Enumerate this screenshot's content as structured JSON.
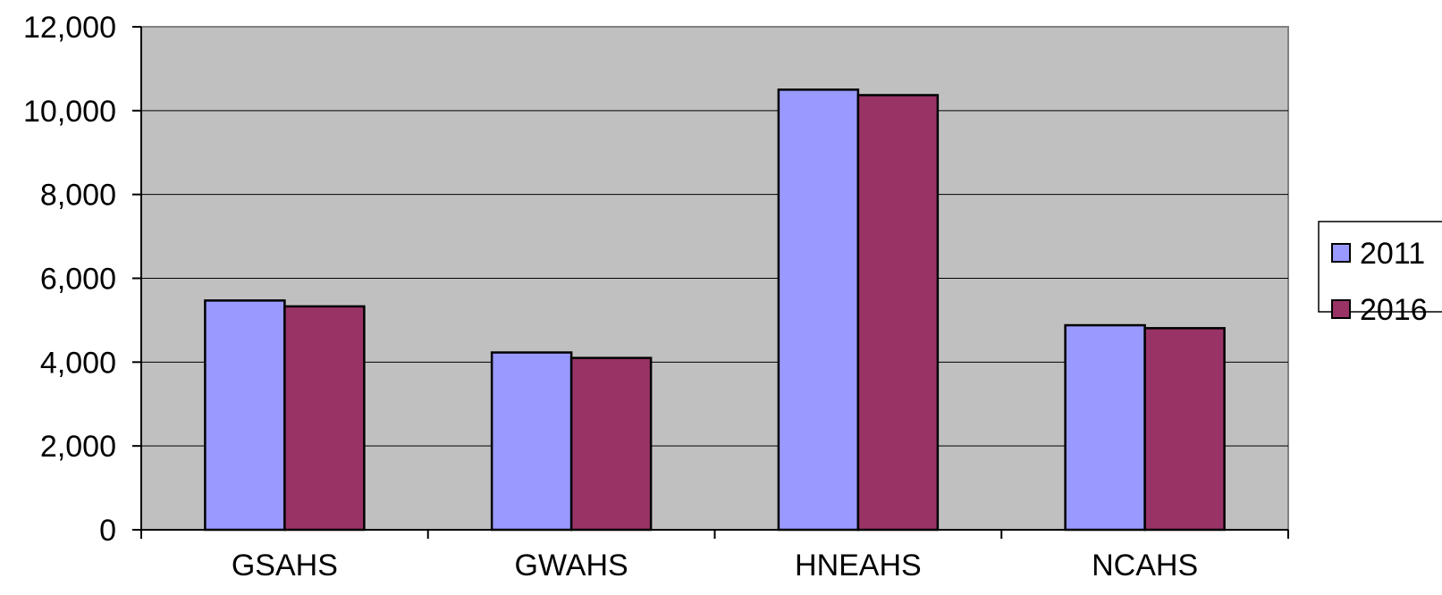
{
  "chart_data": {
    "type": "bar",
    "categories": [
      "GSAHS",
      "GWAHS",
      "HNEAHS",
      "NCAHS"
    ],
    "series": [
      {
        "name": "2011",
        "values": [
          5470,
          4230,
          10500,
          4880
        ],
        "color": "#9999ff"
      },
      {
        "name": "2016",
        "values": [
          5330,
          4100,
          10370,
          4810
        ],
        "color": "#993366"
      }
    ],
    "y_ticks": [
      "0",
      "2,000",
      "4,000",
      "6,000",
      "8,000",
      "10,000",
      "12,000"
    ],
    "ylim": [
      0,
      12000
    ],
    "y_step": 2000,
    "grid": true,
    "plot_background": "#c0c0c0",
    "legend_position": "right"
  }
}
